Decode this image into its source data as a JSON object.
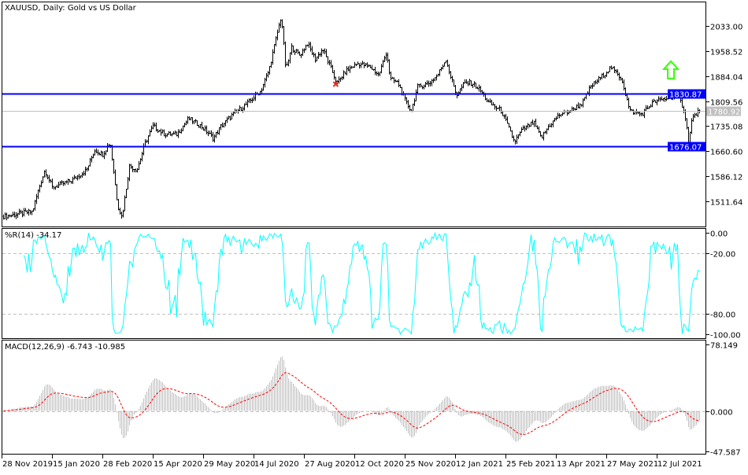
{
  "chart_data": [
    {
      "type": "ohlc",
      "title": "XAUUSD, Daily:  Gold vs US Dollar",
      "y_ticks": [
        "2033.00",
        "1958.52",
        "1884.04",
        "1809.56",
        "1735.08",
        "1660.60",
        "1586.12",
        "1511.64"
      ],
      "ylim": [
        1450,
        2080
      ],
      "x_ticks": [
        "28 Nov 2019",
        "15 Jan 2020",
        "28 Feb 2020",
        "15 Apr 2020",
        "29 May 2020",
        "14 Jul 2020",
        "27 Aug 2020",
        "12 Oct 2020",
        "25 Nov 2020",
        "12 Jan 2021",
        "25 Feb 2021",
        "13 Apr 2021",
        "27 May 2021",
        "12 Jul 2021"
      ],
      "horizontal_lines": [
        {
          "value": 1830.87,
          "label": "1830.87",
          "color": "#0000ff"
        },
        {
          "value": 1676.07,
          "label": "1676.07",
          "color": "#0000ff"
        }
      ],
      "current_price": {
        "value": 1780.92,
        "label": "1780.92",
        "color": "#c0c0c0"
      },
      "annotations": [
        {
          "type": "up-arrow",
          "date": "2021-07-25",
          "price": 1900,
          "color": "#33ff00"
        },
        {
          "type": "sell-marker",
          "date": "2020-09-25",
          "price": 1860,
          "color": "#e03020"
        }
      ],
      "close_series": [
        [
          "2019-11-30",
          1467
        ],
        [
          "2019-12-27",
          1481
        ],
        [
          "2020-01-03",
          1558
        ],
        [
          "2020-01-08",
          1605
        ],
        [
          "2020-01-15",
          1553
        ],
        [
          "2020-02-01",
          1574
        ],
        [
          "2020-02-14",
          1605
        ],
        [
          "2020-02-21",
          1664
        ],
        [
          "2020-02-28",
          1652
        ],
        [
          "2020-03-06",
          1688
        ],
        [
          "2020-03-13",
          1500
        ],
        [
          "2020-03-17",
          1464
        ],
        [
          "2020-03-24",
          1617
        ],
        [
          "2020-03-31",
          1605
        ],
        [
          "2020-04-08",
          1688
        ],
        [
          "2020-04-15",
          1735
        ],
        [
          "2020-04-25",
          1711
        ],
        [
          "2020-05-06",
          1711
        ],
        [
          "2020-05-16",
          1758
        ],
        [
          "2020-05-27",
          1735
        ],
        [
          "2020-06-07",
          1699
        ],
        [
          "2020-06-14",
          1735
        ],
        [
          "2020-06-25",
          1770
        ],
        [
          "2020-07-09",
          1805
        ],
        [
          "2020-07-20",
          1840
        ],
        [
          "2020-07-27",
          1899
        ],
        [
          "2020-08-03",
          2005
        ],
        [
          "2020-08-07",
          2063
        ],
        [
          "2020-08-11",
          1899
        ],
        [
          "2020-08-16",
          1969
        ],
        [
          "2020-08-23",
          1946
        ],
        [
          "2020-08-30",
          1981
        ],
        [
          "2020-09-06",
          1934
        ],
        [
          "2020-09-13",
          1964
        ],
        [
          "2020-09-20",
          1910
        ],
        [
          "2020-09-26",
          1863
        ],
        [
          "2020-10-04",
          1899
        ],
        [
          "2020-10-15",
          1922
        ],
        [
          "2020-10-26",
          1910
        ],
        [
          "2020-11-02",
          1887
        ],
        [
          "2020-11-09",
          1957
        ],
        [
          "2020-11-12",
          1875
        ],
        [
          "2020-11-19",
          1863
        ],
        [
          "2020-11-26",
          1805
        ],
        [
          "2020-12-01",
          1781
        ],
        [
          "2020-12-07",
          1852
        ],
        [
          "2020-12-18",
          1863
        ],
        [
          "2020-12-26",
          1887
        ],
        [
          "2021-01-03",
          1934
        ],
        [
          "2021-01-07",
          1887
        ],
        [
          "2021-01-13",
          1828
        ],
        [
          "2021-01-20",
          1863
        ],
        [
          "2021-01-27",
          1863
        ],
        [
          "2021-02-03",
          1840
        ],
        [
          "2021-02-10",
          1805
        ],
        [
          "2021-02-21",
          1781
        ],
        [
          "2021-02-27",
          1735
        ],
        [
          "2021-03-05",
          1688
        ],
        [
          "2021-03-12",
          1723
        ],
        [
          "2021-03-23",
          1746
        ],
        [
          "2021-03-30",
          1699
        ],
        [
          "2021-04-06",
          1735
        ],
        [
          "2021-04-16",
          1770
        ],
        [
          "2021-04-26",
          1781
        ],
        [
          "2021-05-06",
          1805
        ],
        [
          "2021-05-13",
          1852
        ],
        [
          "2021-05-24",
          1887
        ],
        [
          "2021-05-31",
          1910
        ],
        [
          "2021-06-10",
          1875
        ],
        [
          "2021-06-17",
          1781
        ],
        [
          "2021-06-28",
          1770
        ],
        [
          "2021-07-08",
          1805
        ],
        [
          "2021-07-20",
          1817
        ],
        [
          "2021-07-31",
          1828
        ],
        [
          "2021-08-06",
          1781
        ],
        [
          "2021-08-10",
          1688
        ],
        [
          "2021-08-13",
          1758
        ],
        [
          "2021-08-20",
          1781
        ]
      ],
      "bar_color": "#000000"
    },
    {
      "type": "line",
      "title": "%R(14) -34.17",
      "indicator": "Williams %R",
      "period": 14,
      "last_value": -34.17,
      "y_ticks": [
        "0.00",
        "-20.00",
        "-80.00",
        "-100.00"
      ],
      "levels": [
        -20,
        -80
      ],
      "ylim": [
        -100,
        0
      ],
      "color": "#00ffff"
    },
    {
      "type": "bar+line",
      "title": "MACD(12,26,9) -6.743 -10.985",
      "indicator": "MACD",
      "params": [
        12,
        26,
        9
      ],
      "last_main": -6.743,
      "last_signal": -10.985,
      "y_ticks": [
        "78.149",
        "0.000",
        "-47.587"
      ],
      "ylim": [
        -47.587,
        78.149
      ],
      "histogram_color": "#c0c0c0",
      "signal_color": "#ff0000"
    }
  ]
}
